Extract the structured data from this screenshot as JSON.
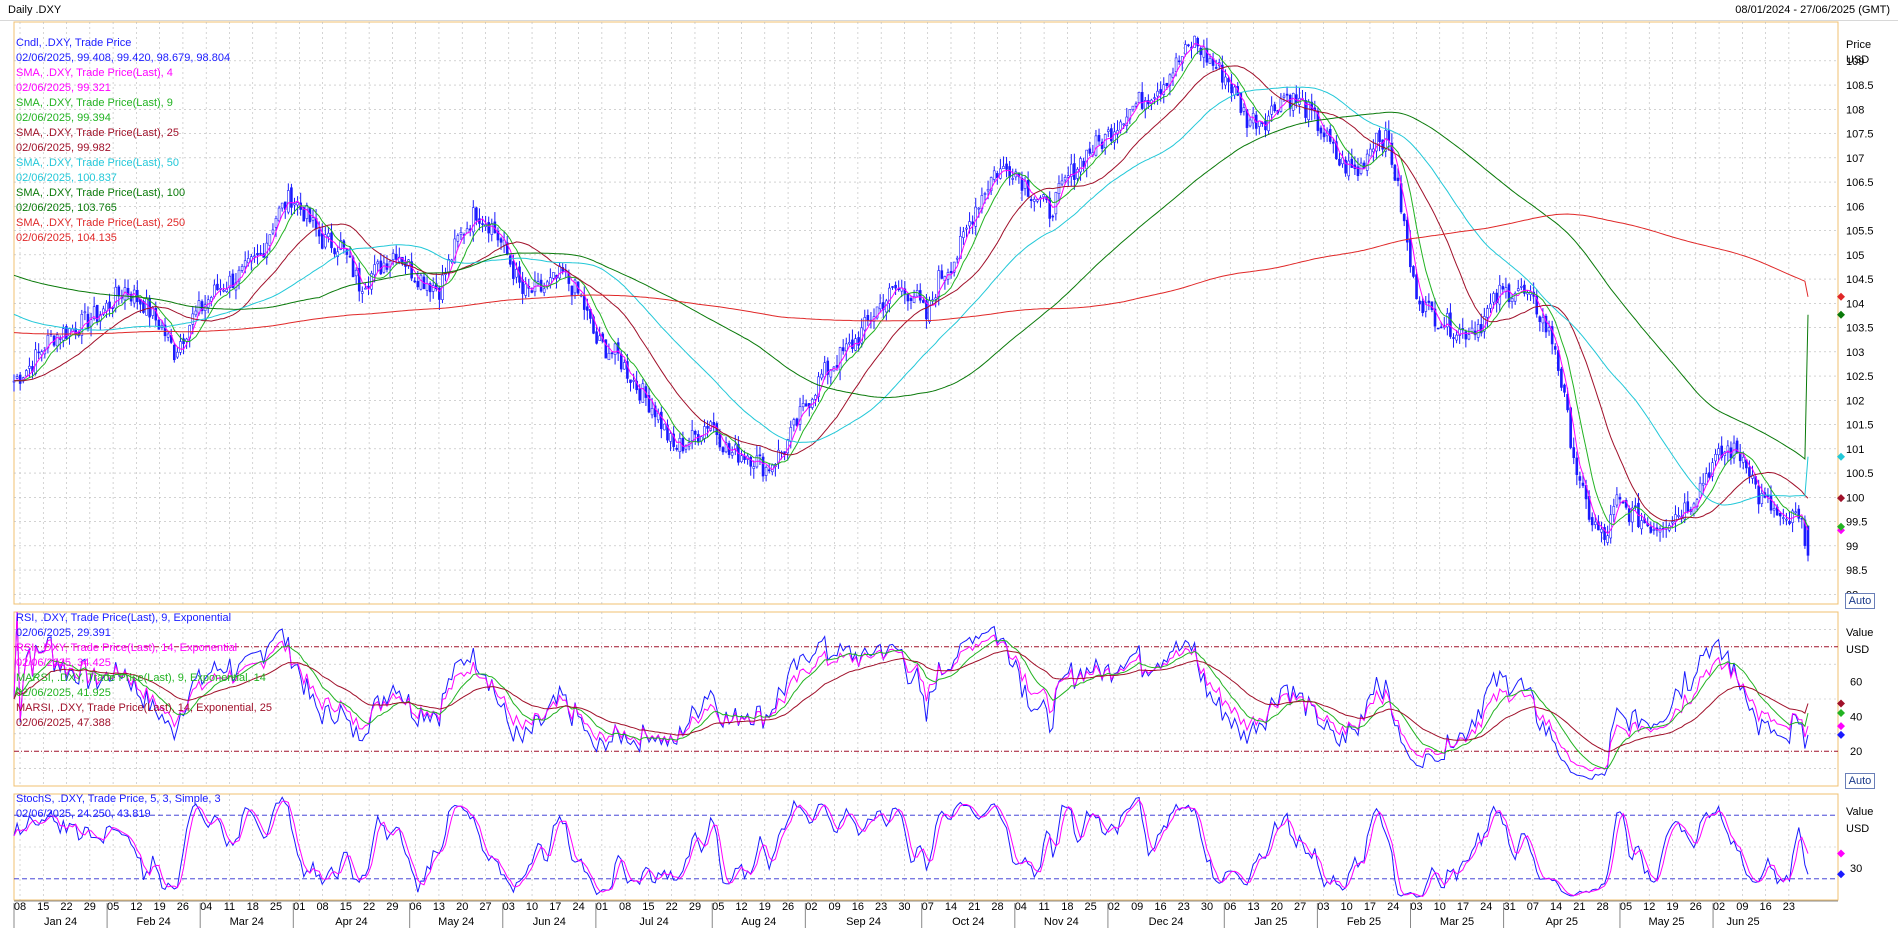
{
  "header": {
    "title": "Daily .DXY",
    "range": "08/01/2024 - 27/06/2025 (GMT)"
  },
  "colors": {
    "candle": "#1a1aff",
    "sma4": "#ff00ff",
    "sma9": "#22b322",
    "sma25": "#a0102a",
    "sma50": "#22c8d8",
    "sma100": "#0a7a0a",
    "sma250": "#e02828",
    "grid": "#b8b8b8",
    "border": "#f0c070"
  },
  "price_panel": {
    "legend": [
      {
        "name": "Cndl, .DXY, Trade Price",
        "value": "02/06/2025, 99.408, 99.420, 98.679, 98.804",
        "color": "#1a1aff"
      },
      {
        "name": "SMA, .DXY, Trade Price(Last), 4",
        "value": "02/06/2025, 99.321",
        "color": "#ff00ff"
      },
      {
        "name": "SMA, .DXY, Trade Price(Last), 9",
        "value": "02/06/2025, 99.394",
        "color": "#22b322"
      },
      {
        "name": "SMA, .DXY, Trade Price(Last), 25",
        "value": "02/06/2025, 99.982",
        "color": "#a0102a"
      },
      {
        "name": "SMA, .DXY, Trade Price(Last), 50",
        "value": "02/06/2025, 100.837",
        "color": "#22c8d8"
      },
      {
        "name": "SMA, .DXY, Trade Price(Last), 100",
        "value": "02/06/2025, 103.765",
        "color": "#0a7a0a"
      },
      {
        "name": "SMA, .DXY, Trade Price(Last), 250",
        "value": "02/06/2025, 104.135",
        "color": "#e02828"
      }
    ],
    "axis_title": "Price",
    "axis_unit": "USD",
    "auto_label": "Auto",
    "y_ticks": [
      109,
      108.5,
      108,
      107.5,
      107,
      106.5,
      106,
      105.5,
      105,
      104.5,
      104,
      103.5,
      103,
      102.5,
      102,
      101.5,
      101,
      100.5,
      100,
      99.5,
      99,
      98.5,
      98
    ]
  },
  "rsi_panel": {
    "legend": [
      {
        "name": "RSI, .DXY, Trade Price(Last), 9, Exponential",
        "value": "02/06/2025, 29.391",
        "color": "#1a1aff"
      },
      {
        "name": "RSI, .DXY, Trade Price(Last), 14, Exponential",
        "value": "02/06/2025, 34.425",
        "color": "#ff00ff"
      },
      {
        "name": "MARSI, .DXY, Trade Price(Last), 9, Exponential, 14",
        "value": "02/06/2025, 41.925",
        "color": "#22b322"
      },
      {
        "name": "MARSI, .DXY, Trade Price(Last), 14, Exponential, 25",
        "value": "02/06/2025, 47.388",
        "color": "#a0102a"
      }
    ],
    "axis_title": "Value",
    "axis_unit": "USD",
    "auto_label": "Auto",
    "y_ticks": [
      60,
      40,
      20
    ],
    "levels": [
      80,
      20
    ]
  },
  "stoch_panel": {
    "legend": [
      {
        "name": "StochS, .DXY, Trade Price, 5, 3, Simple, 3",
        "value": "02/06/2025, 24.250, 43.819",
        "color": "#1a1aff"
      }
    ],
    "axis_title": "Value",
    "axis_unit": "USD",
    "y_ticks": [
      30
    ],
    "levels": [
      80,
      20
    ]
  },
  "x_axis": {
    "days": [
      "08",
      "15",
      "22",
      "29",
      "05",
      "12",
      "19",
      "26",
      "04",
      "11",
      "18",
      "25",
      "01",
      "08",
      "15",
      "22",
      "29",
      "06",
      "13",
      "20",
      "27",
      "03",
      "10",
      "17",
      "24",
      "01",
      "08",
      "15",
      "22",
      "29",
      "05",
      "12",
      "19",
      "26",
      "02",
      "09",
      "16",
      "23",
      "30",
      "07",
      "14",
      "21",
      "28",
      "04",
      "11",
      "18",
      "25",
      "02",
      "09",
      "16",
      "23",
      "30",
      "06",
      "13",
      "20",
      "27",
      "03",
      "10",
      "17",
      "24",
      "03",
      "10",
      "17",
      "24",
      "31",
      "07",
      "14",
      "21",
      "28",
      "05",
      "12",
      "19",
      "26",
      "02",
      "09",
      "16",
      "23"
    ],
    "months": [
      "Jan 24",
      "Feb 24",
      "Mar 24",
      "Apr 24",
      "May 24",
      "Jun 24",
      "Jul 24",
      "Aug 24",
      "Sep 24",
      "Oct 24",
      "Nov 24",
      "Dec 24",
      "Jan 25",
      "Feb 25",
      "Mar 25",
      "Apr 25",
      "May 25",
      "Jun 25"
    ]
  },
  "chart_data": {
    "type": "line",
    "x_start": "08/01/2024",
    "x_end": "02/06/2025",
    "ylim": [
      97.8,
      109.8
    ],
    "price_anchors": [
      [
        0,
        102.4
      ],
      [
        5,
        102.7
      ],
      [
        12,
        103.3
      ],
      [
        20,
        103.5
      ],
      [
        28,
        103.8
      ],
      [
        36,
        104.3
      ],
      [
        42,
        104.0
      ],
      [
        48,
        103.5
      ],
      [
        52,
        103.0
      ],
      [
        58,
        103.7
      ],
      [
        66,
        104.3
      ],
      [
        74,
        104.6
      ],
      [
        80,
        105.0
      ],
      [
        85,
        105.8
      ],
      [
        90,
        106.2
      ],
      [
        95,
        105.8
      ],
      [
        100,
        105.3
      ],
      [
        106,
        105.2
      ],
      [
        112,
        104.4
      ],
      [
        118,
        104.7
      ],
      [
        124,
        105.1
      ],
      [
        130,
        104.6
      ],
      [
        138,
        104.3
      ],
      [
        144,
        105.3
      ],
      [
        150,
        105.9
      ],
      [
        155,
        105.6
      ],
      [
        160,
        105.0
      ],
      [
        165,
        104.2
      ],
      [
        172,
        104.3
      ],
      [
        178,
        104.6
      ],
      [
        184,
        104.1
      ],
      [
        189,
        103.2
      ],
      [
        196,
        102.9
      ],
      [
        202,
        102.3
      ],
      [
        208,
        101.8
      ],
      [
        214,
        101.0
      ],
      [
        220,
        101.2
      ],
      [
        226,
        101.6
      ],
      [
        232,
        100.9
      ],
      [
        238,
        100.9
      ],
      [
        244,
        100.6
      ],
      [
        250,
        101.0
      ],
      [
        256,
        101.8
      ],
      [
        262,
        102.5
      ],
      [
        268,
        102.9
      ],
      [
        274,
        103.3
      ],
      [
        280,
        103.9
      ],
      [
        286,
        104.3
      ],
      [
        292,
        104.2
      ],
      [
        296,
        103.7
      ],
      [
        300,
        104.5
      ],
      [
        306,
        105.0
      ],
      [
        312,
        106.0
      ],
      [
        318,
        106.7
      ],
      [
        324,
        106.8
      ],
      [
        330,
        106.3
      ],
      [
        336,
        105.9
      ],
      [
        342,
        106.6
      ],
      [
        348,
        107.1
      ],
      [
        354,
        107.4
      ],
      [
        360,
        107.9
      ],
      [
        366,
        108.2
      ],
      [
        372,
        108.5
      ],
      [
        378,
        109.0
      ],
      [
        383,
        109.4
      ],
      [
        388,
        109.0
      ],
      [
        394,
        108.6
      ],
      [
        400,
        107.8
      ],
      [
        406,
        107.8
      ],
      [
        412,
        108.3
      ],
      [
        418,
        108.1
      ],
      [
        424,
        107.6
      ],
      [
        430,
        106.9
      ],
      [
        436,
        106.7
      ],
      [
        442,
        107.5
      ],
      [
        446,
        107.3
      ],
      [
        450,
        106.0
      ],
      [
        454,
        104.4
      ],
      [
        458,
        103.9
      ],
      [
        464,
        103.6
      ],
      [
        470,
        103.4
      ],
      [
        476,
        103.6
      ],
      [
        482,
        104.2
      ],
      [
        488,
        104.3
      ],
      [
        494,
        103.9
      ],
      [
        500,
        103.1
      ],
      [
        504,
        101.6
      ],
      [
        508,
        100.2
      ],
      [
        512,
        99.5
      ],
      [
        516,
        99.1
      ],
      [
        520,
        99.9
      ],
      [
        526,
        99.6
      ],
      [
        532,
        99.4
      ],
      [
        538,
        99.6
      ],
      [
        544,
        99.9
      ],
      [
        550,
        100.6
      ],
      [
        556,
        101.0
      ],
      [
        562,
        100.8
      ],
      [
        566,
        100.0
      ],
      [
        570,
        99.8
      ],
      [
        574,
        99.4
      ],
      [
        578,
        99.6
      ],
      [
        582,
        99.1
      ]
    ],
    "series": [
      {
        "name": "SMA 4",
        "period": 4
      },
      {
        "name": "SMA 9",
        "period": 9
      },
      {
        "name": "SMA 25",
        "period": 25
      },
      {
        "name": "SMA 50",
        "period": 50
      },
      {
        "name": "SMA 100",
        "period": 100
      },
      {
        "name": "SMA 250",
        "period": 250
      },
      {
        "name": "RSI 9"
      },
      {
        "name": "RSI 14"
      },
      {
        "name": "MARSI 9,14"
      },
      {
        "name": "MARSI 14,25"
      },
      {
        "name": "StochS %K"
      },
      {
        "name": "StochS %D"
      }
    ],
    "last_values": {
      "open": 99.408,
      "high": 99.42,
      "low": 98.679,
      "close": 98.804,
      "sma4": 99.321,
      "sma9": 99.394,
      "sma25": 99.982,
      "sma50": 100.837,
      "sma100": 103.765,
      "sma250": 104.135,
      "rsi9": 29.391,
      "rsi14": 34.425,
      "marsi9": 41.925,
      "marsi14": 47.388,
      "stoch_k": 24.25,
      "stoch_d": 43.819
    }
  }
}
